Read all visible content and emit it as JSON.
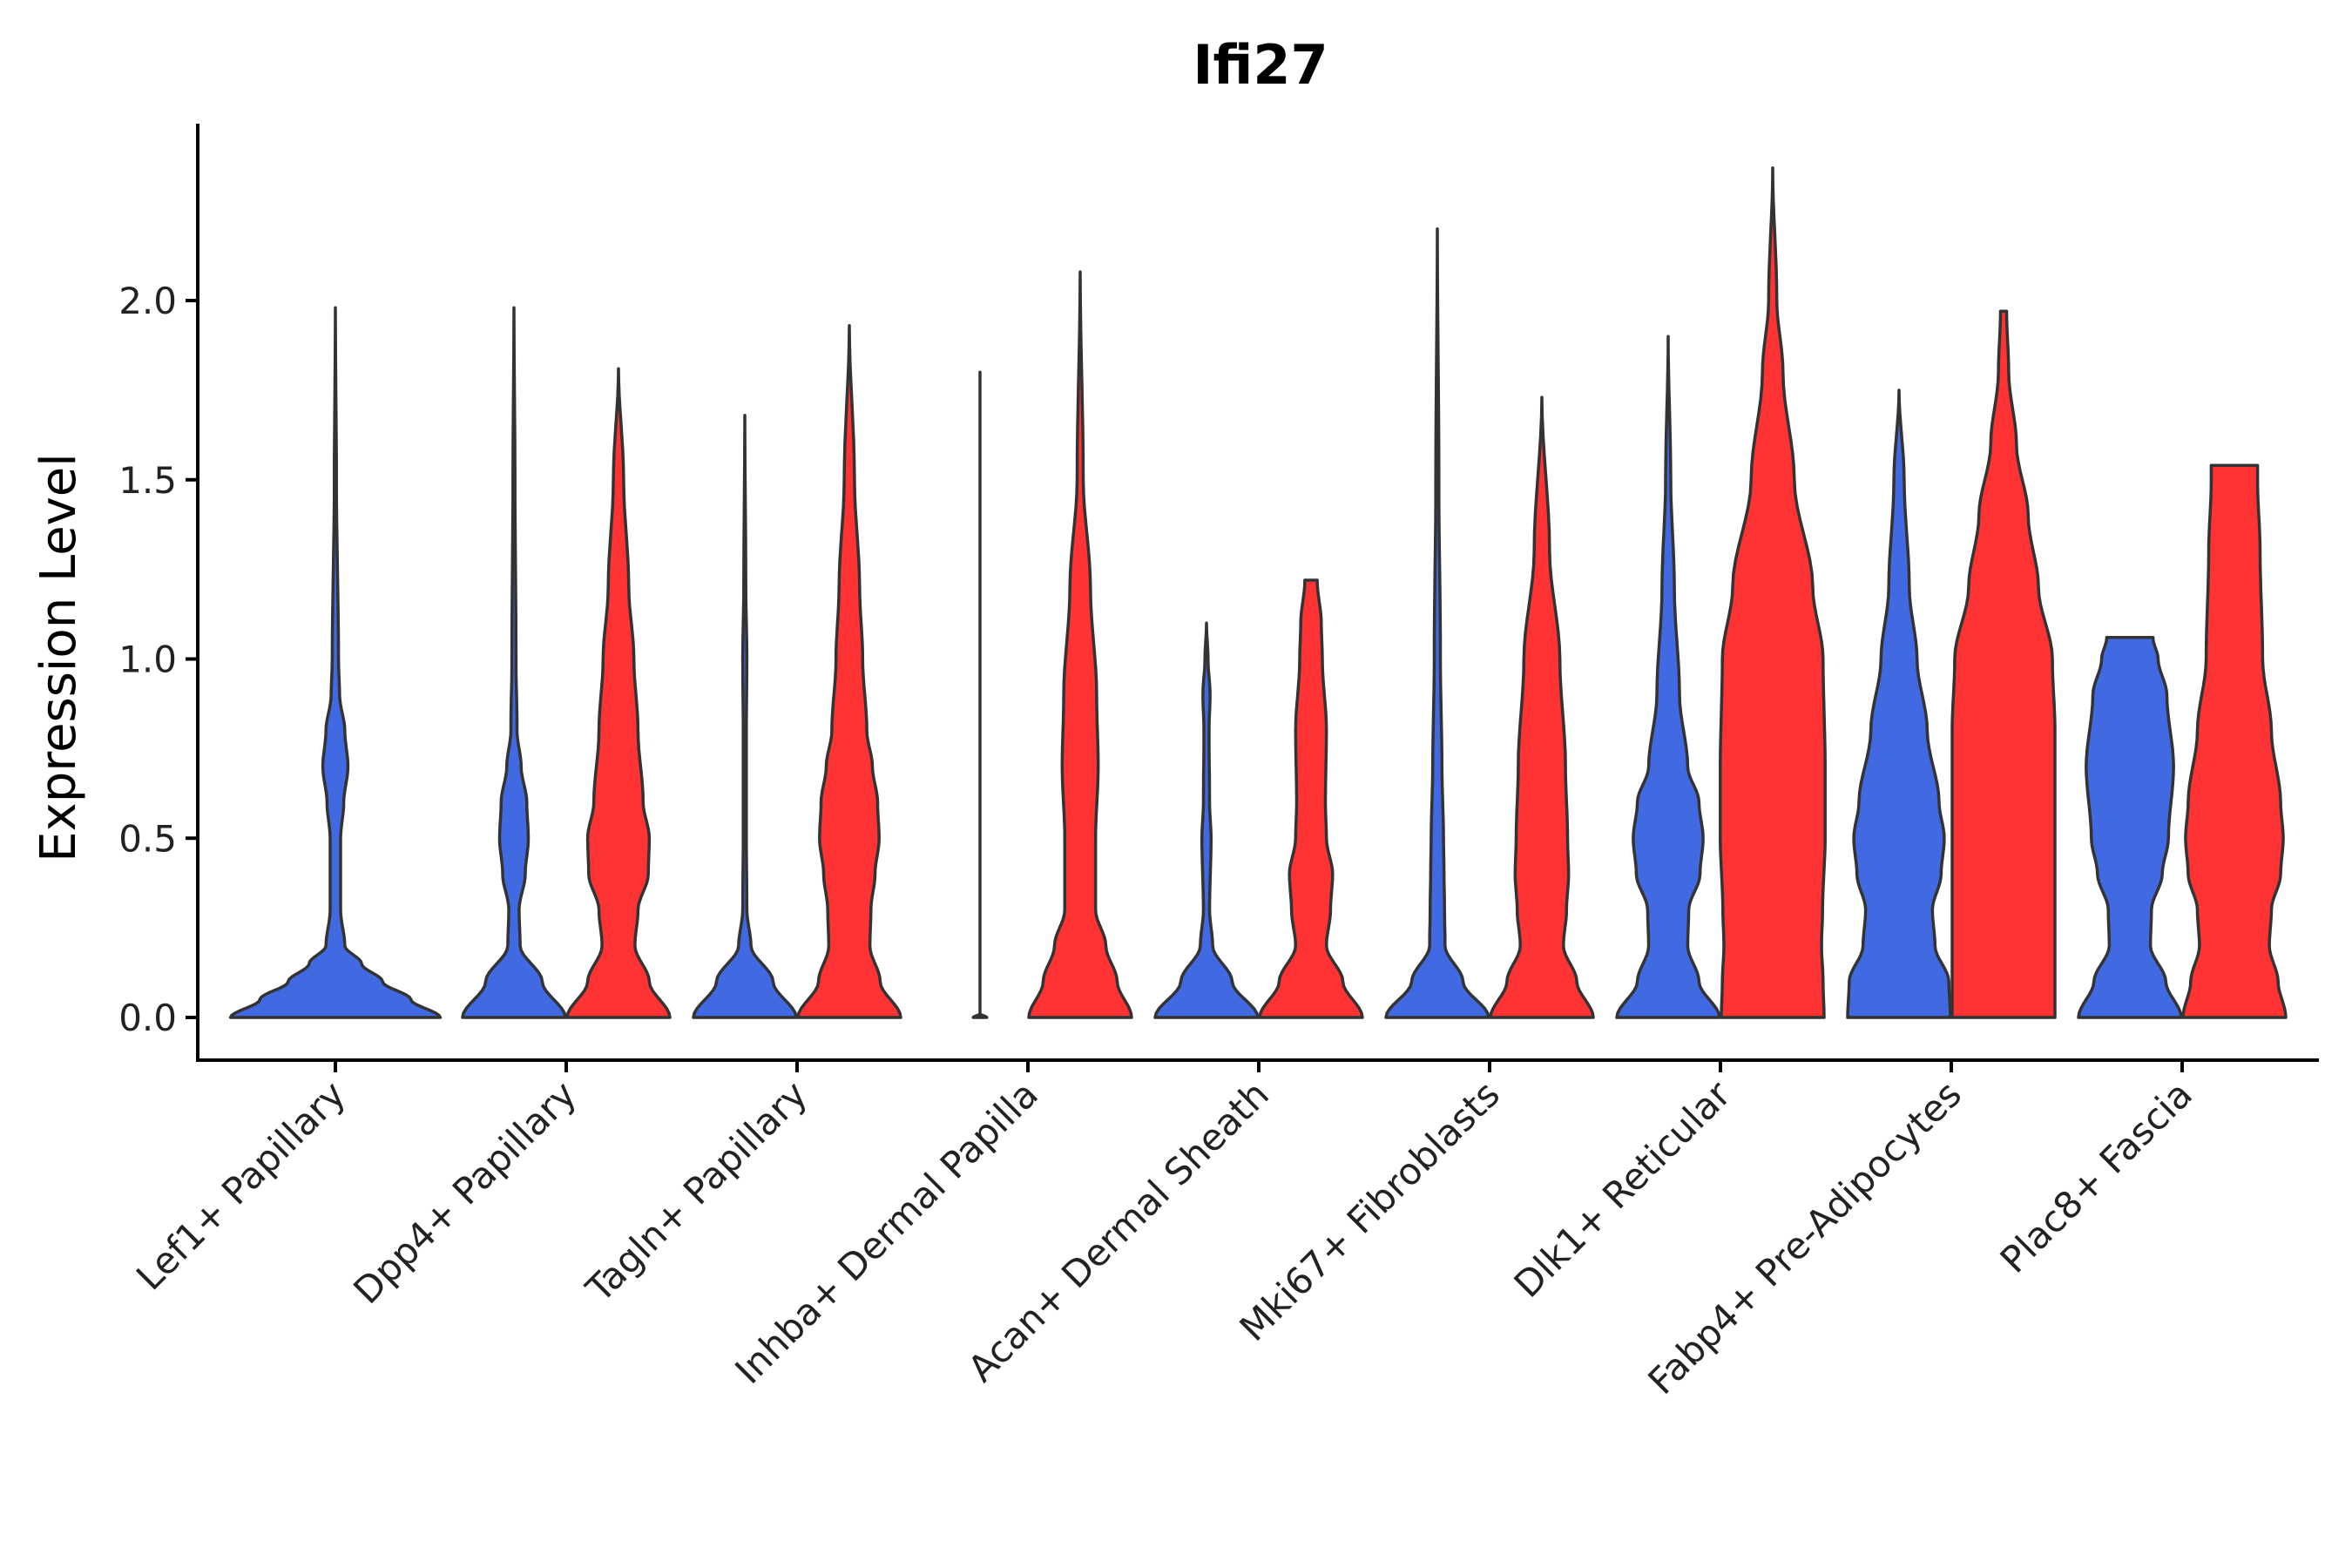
{
  "chart_data": {
    "type": "violin",
    "title": "Ifi27",
    "xlabel": "",
    "ylabel": "Expression Level",
    "ylim": [
      -0.12,
      2.5
    ],
    "yticks": [
      0.0,
      0.5,
      1.0,
      1.5,
      2.0
    ],
    "ytick_labels": [
      "0.0",
      "0.5",
      "1.0",
      "1.5",
      "2.0"
    ],
    "grid": false,
    "legend": "none",
    "colors": {
      "group_a": "#4169E1",
      "group_b": "#FF3333",
      "outline": "#333333"
    },
    "categories": [
      "Lef1+ Papillary",
      "Dpp4+ Papillary",
      "Tagln+ Papillary",
      "Inhba+ Dermal Papilla",
      "Acan+ Dermal Sheath",
      "Mki67+ Fibroblasts",
      "Dlk1+ Reticular",
      "Fabp4+ Pre-Adipocytes",
      "Plac8+ Fascia"
    ],
    "series": [
      {
        "name": "group_a",
        "color": "#4169E1",
        "max_values": [
          1.98,
          1.98,
          1.68,
          1.8,
          1.1,
          2.2,
          1.9,
          1.75,
          1.06
        ],
        "density_profiles": [
          [
            [
              0,
              1.0
            ],
            [
              0.05,
              0.72
            ],
            [
              0.1,
              0.45
            ],
            [
              0.15,
              0.25
            ],
            [
              0.2,
              0.09
            ],
            [
              0.3,
              0.05
            ],
            [
              0.5,
              0.05
            ],
            [
              0.6,
              0.08
            ],
            [
              0.7,
              0.12
            ],
            [
              0.8,
              0.09
            ],
            [
              0.9,
              0.04
            ],
            [
              1.0,
              0.03
            ],
            [
              1.5,
              0.01
            ],
            [
              1.98,
              0
            ]
          ],
          [
            [
              0,
              1.0
            ],
            [
              0.1,
              0.55
            ],
            [
              0.2,
              0.12
            ],
            [
              0.3,
              0.1
            ],
            [
              0.4,
              0.22
            ],
            [
              0.5,
              0.28
            ],
            [
              0.6,
              0.25
            ],
            [
              0.7,
              0.14
            ],
            [
              0.8,
              0.06
            ],
            [
              1.0,
              0.04
            ],
            [
              1.5,
              0.02
            ],
            [
              1.98,
              0
            ]
          ],
          [
            [
              0,
              1.0
            ],
            [
              0.1,
              0.55
            ],
            [
              0.2,
              0.12
            ],
            [
              0.3,
              0.04
            ],
            [
              0.5,
              0.03
            ],
            [
              0.8,
              0.03
            ],
            [
              1.0,
              0.04
            ],
            [
              1.2,
              0.02
            ],
            [
              1.68,
              0
            ]
          ],
          [
            [
              0,
              0.12
            ],
            [
              0.01,
              0
            ],
            [
              1.8,
              0
            ]
          ],
          [
            [
              0,
              1.0
            ],
            [
              0.1,
              0.5
            ],
            [
              0.2,
              0.12
            ],
            [
              0.3,
              0.06
            ],
            [
              0.5,
              0.09
            ],
            [
              0.6,
              0.06
            ],
            [
              0.8,
              0.05
            ],
            [
              0.9,
              0.07
            ],
            [
              1.0,
              0.03
            ],
            [
              1.1,
              0
            ]
          ],
          [
            [
              0,
              1.0
            ],
            [
              0.1,
              0.5
            ],
            [
              0.2,
              0.15
            ],
            [
              0.3,
              0.14
            ],
            [
              0.4,
              0.13
            ],
            [
              0.5,
              0.12
            ],
            [
              0.7,
              0.09
            ],
            [
              1.0,
              0.06
            ],
            [
              1.5,
              0.03
            ],
            [
              2.2,
              0
            ]
          ],
          [
            [
              0,
              1.0
            ],
            [
              0.1,
              0.6
            ],
            [
              0.2,
              0.38
            ],
            [
              0.3,
              0.4
            ],
            [
              0.4,
              0.62
            ],
            [
              0.5,
              0.68
            ],
            [
              0.6,
              0.6
            ],
            [
              0.7,
              0.38
            ],
            [
              0.9,
              0.22
            ],
            [
              1.2,
              0.12
            ],
            [
              1.5,
              0.05
            ],
            [
              1.9,
              0
            ]
          ],
          [
            [
              0,
              1.0
            ],
            [
              0.1,
              0.97
            ],
            [
              0.2,
              0.7
            ],
            [
              0.3,
              0.65
            ],
            [
              0.4,
              0.82
            ],
            [
              0.5,
              0.88
            ],
            [
              0.6,
              0.78
            ],
            [
              0.8,
              0.55
            ],
            [
              1.0,
              0.35
            ],
            [
              1.2,
              0.2
            ],
            [
              1.5,
              0.1
            ],
            [
              1.75,
              0
            ]
          ],
          [
            [
              0,
              1.0
            ],
            [
              0.1,
              0.7
            ],
            [
              0.2,
              0.4
            ],
            [
              0.3,
              0.42
            ],
            [
              0.4,
              0.63
            ],
            [
              0.5,
              0.75
            ],
            [
              0.7,
              0.85
            ],
            [
              0.9,
              0.72
            ],
            [
              1.0,
              0.55
            ],
            [
              1.06,
              0.45
            ]
          ]
        ]
      },
      {
        "name": "group_b",
        "color": "#FF3333",
        "max_values": [
          null,
          1.81,
          1.93,
          2.08,
          1.22,
          1.73,
          2.37,
          1.97,
          1.54
        ],
        "density_profiles": [
          null,
          [
            [
              0,
              1.0
            ],
            [
              0.1,
              0.6
            ],
            [
              0.2,
              0.32
            ],
            [
              0.3,
              0.38
            ],
            [
              0.4,
              0.58
            ],
            [
              0.5,
              0.6
            ],
            [
              0.6,
              0.48
            ],
            [
              0.8,
              0.38
            ],
            [
              1.0,
              0.3
            ],
            [
              1.2,
              0.2
            ],
            [
              1.5,
              0.1
            ],
            [
              1.81,
              0
            ]
          ],
          [
            [
              0,
              1.0
            ],
            [
              0.1,
              0.6
            ],
            [
              0.2,
              0.4
            ],
            [
              0.3,
              0.42
            ],
            [
              0.4,
              0.5
            ],
            [
              0.5,
              0.58
            ],
            [
              0.6,
              0.55
            ],
            [
              0.7,
              0.45
            ],
            [
              0.8,
              0.34
            ],
            [
              1.0,
              0.26
            ],
            [
              1.2,
              0.2
            ],
            [
              1.5,
              0.1
            ],
            [
              1.93,
              0
            ]
          ],
          [
            [
              0,
              1.0
            ],
            [
              0.1,
              0.72
            ],
            [
              0.2,
              0.5
            ],
            [
              0.3,
              0.3
            ],
            [
              0.5,
              0.3
            ],
            [
              0.7,
              0.35
            ],
            [
              0.9,
              0.32
            ],
            [
              1.2,
              0.2
            ],
            [
              1.5,
              0.06
            ],
            [
              2.08,
              0
            ]
          ],
          [
            [
              0,
              1.0
            ],
            [
              0.1,
              0.62
            ],
            [
              0.2,
              0.3
            ],
            [
              0.3,
              0.38
            ],
            [
              0.4,
              0.42
            ],
            [
              0.5,
              0.3
            ],
            [
              0.6,
              0.28
            ],
            [
              0.8,
              0.3
            ],
            [
              1.0,
              0.22
            ],
            [
              1.1,
              0.2
            ],
            [
              1.22,
              0.12
            ]
          ],
          [
            [
              0,
              1.0
            ],
            [
              0.1,
              0.68
            ],
            [
              0.2,
              0.42
            ],
            [
              0.3,
              0.48
            ],
            [
              0.4,
              0.52
            ],
            [
              0.5,
              0.5
            ],
            [
              0.7,
              0.46
            ],
            [
              1.0,
              0.35
            ],
            [
              1.3,
              0.15
            ],
            [
              1.73,
              0
            ]
          ],
          [
            [
              0,
              1.0
            ],
            [
              0.1,
              0.98
            ],
            [
              0.2,
              0.95
            ],
            [
              0.3,
              0.97
            ],
            [
              0.5,
              1.02
            ],
            [
              0.7,
              1.02
            ],
            [
              1.0,
              0.98
            ],
            [
              1.2,
              0.78
            ],
            [
              1.5,
              0.42
            ],
            [
              1.8,
              0.2
            ],
            [
              2.0,
              0.08
            ],
            [
              2.37,
              0
            ]
          ],
          [
            [
              0,
              1.0
            ],
            [
              0.1,
              1.0
            ],
            [
              0.2,
              1.0
            ],
            [
              0.4,
              1.0
            ],
            [
              0.6,
              1.0
            ],
            [
              0.8,
              1.0
            ],
            [
              1.0,
              0.95
            ],
            [
              1.2,
              0.68
            ],
            [
              1.4,
              0.48
            ],
            [
              1.6,
              0.25
            ],
            [
              1.8,
              0.1
            ],
            [
              1.97,
              0.06
            ]
          ],
          [
            [
              0,
              1.0
            ],
            [
              0.1,
              0.85
            ],
            [
              0.2,
              0.68
            ],
            [
              0.3,
              0.72
            ],
            [
              0.4,
              0.9
            ],
            [
              0.5,
              0.95
            ],
            [
              0.6,
              0.9
            ],
            [
              0.8,
              0.72
            ],
            [
              1.0,
              0.55
            ],
            [
              1.3,
              0.5
            ],
            [
              1.5,
              0.45
            ],
            [
              1.54,
              0.45
            ]
          ]
        ]
      }
    ]
  }
}
